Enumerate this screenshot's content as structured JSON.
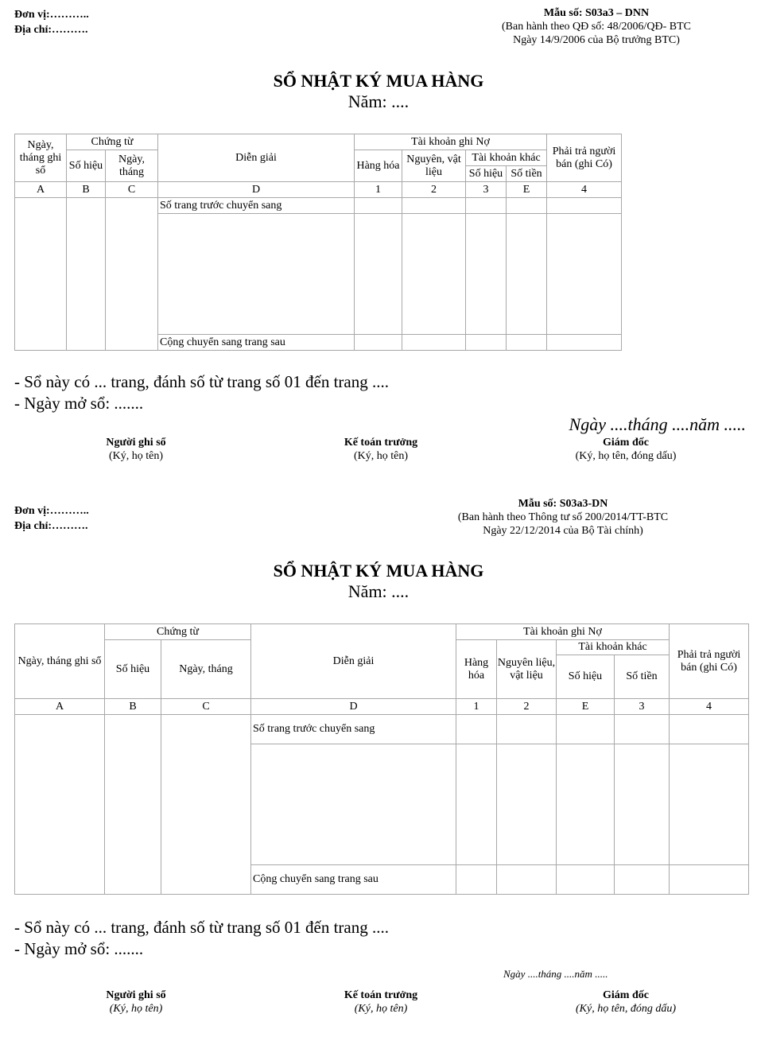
{
  "form1": {
    "unit": "Đơn vị:………..",
    "address": "Địa chỉ:……….",
    "form_no": "Mẫu số: S03a3 – DNN",
    "issued": "(Ban hành theo QĐ số: 48/2006/QĐ- BTC",
    "issued_date": "Ngày 14/9/2006 của Bộ trưởng BTC)",
    "title": "SỔ NHẬT KÝ MUA HÀNG",
    "year": "Năm: ....",
    "table": {
      "col_date": "Ngày, tháng ghi sổ",
      "voucher": "Chứng từ",
      "voucher_no": "Số hiệu",
      "voucher_date": "Ngày, tháng",
      "desc": "Diễn giải",
      "debit": "Tài khoản ghi Nợ",
      "goods": "Hàng hóa",
      "materials": "Nguyên, vật liệu",
      "other": "Tài khoản khác",
      "other_no": "Số hiệu",
      "other_amount": "Số tiền",
      "payable": "Phải trả người bán (ghi Có)",
      "codes": [
        "A",
        "B",
        "C",
        "D",
        "1",
        "2",
        "3",
        "E",
        "4"
      ],
      "row_carried_in": "Số trang trước chuyển sang",
      "row_carried_out": "Cộng chuyển sang trang sau"
    },
    "note_pages": "- Sổ này có ... trang, đánh số từ trang số 01 đến trang ....",
    "note_open": "- Ngày mở sổ: .......",
    "date_line": "Ngày ....tháng ....năm .....",
    "signers": [
      {
        "role": "Người ghi sổ",
        "note": "(Ký, họ tên)"
      },
      {
        "role": "Kế toán trưởng",
        "note": "(Ký, họ tên)"
      },
      {
        "role": "Giám đốc",
        "note": "(Ký, họ tên, đóng dấu)"
      }
    ]
  },
  "form2": {
    "unit": "Đơn vị:………..",
    "address": "Địa chỉ:……….",
    "form_no": "Mẫu số: S03a3-DN",
    "issued": "(Ban hành theo Thông tư số 200/2014/TT-BTC",
    "issued_date": "Ngày 22/12/2014 của Bộ Tài chính)",
    "title": "SỔ NHẬT KÝ MUA HÀNG",
    "year": "Năm: ....",
    "table": {
      "col_date": "Ngày, tháng ghi sổ",
      "voucher": "Chứng từ",
      "voucher_no": "Số hiệu",
      "voucher_date": "Ngày, tháng",
      "desc": "Diễn giải",
      "debit": "Tài khoản ghi Nợ",
      "goods": "Hàng hóa",
      "materials": "Nguyên liệu, vật liệu",
      "other": "Tài khoản khác",
      "other_no": "Số hiệu",
      "other_amount": "Số tiền",
      "payable": "Phải trả người bán (ghi Có)",
      "codes": [
        "A",
        "B",
        "C",
        "D",
        "1",
        "2",
        "E",
        "3",
        "4"
      ],
      "row_carried_in": "Số trang trước chuyển sang",
      "row_carried_out": "Cộng chuyển sang trang sau"
    },
    "note_pages": "- Sổ này có ... trang, đánh số từ trang số 01 đến trang ....",
    "note_open": "- Ngày mở sổ: .......",
    "date_line": "Ngày ....tháng ....năm .....",
    "signers": [
      {
        "role": "Người ghi sổ",
        "note": "(Ký, họ tên)"
      },
      {
        "role": "Kế toán trưởng",
        "note": "(Ký, họ tên)"
      },
      {
        "role": "Giám đốc",
        "note": "(Ký, họ tên, đóng dấu)"
      }
    ]
  }
}
